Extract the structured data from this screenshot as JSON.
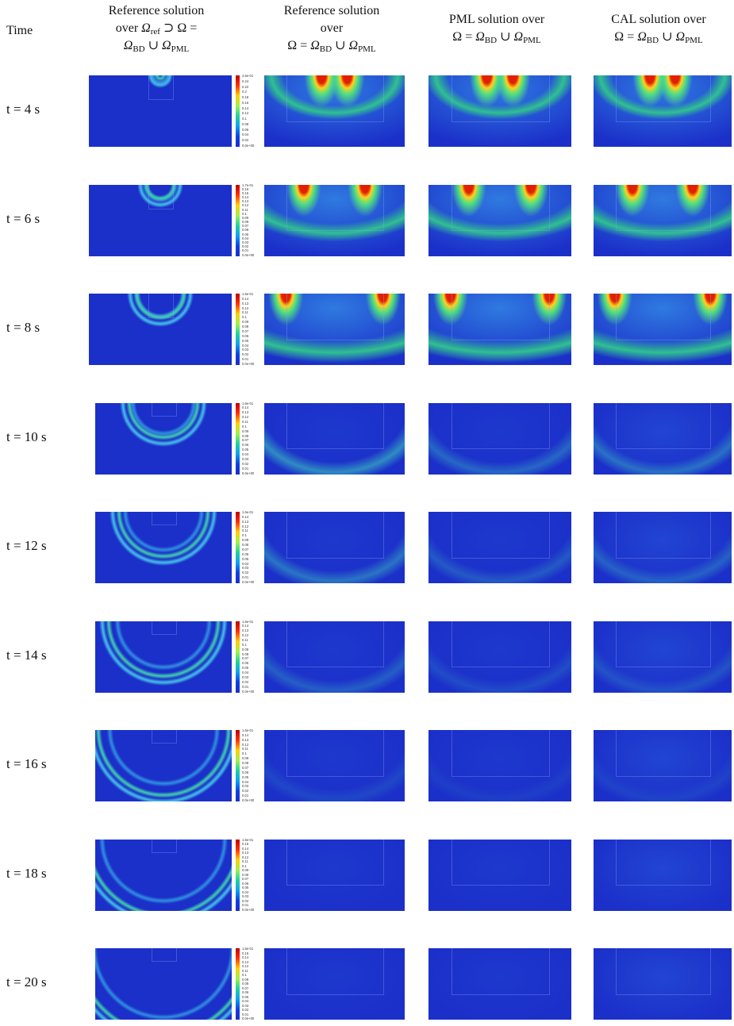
{
  "header": {
    "columns": [
      {
        "lines": [
          [
            "Time"
          ]
        ]
      },
      {
        "lines": [
          [
            "Reference solution"
          ],
          [
            "over ",
            {
              "base": "Ω",
              "sub": "ref"
            },
            " ⊃ Ω ="
          ],
          [
            {
              "base": "Ω",
              "sub": "BD"
            },
            " ∪ ",
            {
              "base": "Ω",
              "sub": "PML"
            }
          ]
        ]
      },
      {
        "lines": [
          [
            "Reference solution"
          ],
          [
            "over"
          ],
          [
            "Ω = ",
            {
              "base": "Ω",
              "sub": "BD"
            },
            " ∪ ",
            {
              "base": "Ω",
              "sub": "PML"
            }
          ]
        ]
      },
      {
        "lines": [
          [
            "PML solution over"
          ],
          [
            "Ω = ",
            {
              "base": "Ω",
              "sub": "BD"
            },
            " ∪ ",
            {
              "base": "Ω",
              "sub": "PML"
            }
          ]
        ]
      },
      {
        "lines": [
          [
            "CAL solution over"
          ],
          [
            "Ω = ",
            {
              "base": "Ω",
              "sub": "BD"
            },
            " ∪ ",
            {
              "base": "Ω",
              "sub": "PML"
            }
          ]
        ]
      }
    ]
  },
  "rows": [
    {
      "time": "t = 4 s",
      "colorbar": [
        "2.6e-01",
        "0.24",
        "0.22",
        "0.2",
        "0.18",
        "0.16",
        "0.14",
        "0.12",
        "0.1",
        "0.08",
        "0.06",
        "0.04",
        "0.02",
        "0.0e+00"
      ]
    },
    {
      "time": "t = 6 s",
      "colorbar": [
        "1.7e-01",
        "0.16",
        "0.15",
        "0.14",
        "0.13",
        "0.12",
        "0.11",
        "0.1",
        "0.09",
        "0.08",
        "0.07",
        "0.06",
        "0.05",
        "0.04",
        "0.03",
        "0.02",
        "0.01",
        "0.0e+00"
      ]
    },
    {
      "time": "t = 8 s",
      "colorbar": [
        "1.6e-01",
        "0.14",
        "0.13",
        "0.12",
        "0.11",
        "0.1",
        "0.09",
        "0.08",
        "0.07",
        "0.06",
        "0.05",
        "0.04",
        "0.03",
        "0.02",
        "0.01",
        "0.0e+00"
      ]
    },
    {
      "time": "t = 10 s",
      "colorbar": [
        "1.6e-01",
        "0.14",
        "0.13",
        "0.12",
        "0.11",
        "0.1",
        "0.09",
        "0.08",
        "0.07",
        "0.06",
        "0.05",
        "0.04",
        "0.03",
        "0.02",
        "0.01",
        "0.0e+00"
      ]
    },
    {
      "time": "t = 12 s",
      "colorbar": [
        "1.6e-01",
        "0.14",
        "0.13",
        "0.12",
        "0.11",
        "0.1",
        "0.09",
        "0.08",
        "0.07",
        "0.06",
        "0.05",
        "0.04",
        "0.03",
        "0.02",
        "0.01",
        "0.0e+00"
      ]
    },
    {
      "time": "t = 14 s",
      "colorbar": [
        "1.6e-01",
        "0.14",
        "0.13",
        "0.12",
        "0.11",
        "0.1",
        "0.09",
        "0.08",
        "0.07",
        "0.06",
        "0.05",
        "0.04",
        "0.03",
        "0.02",
        "0.01",
        "0.0e+00"
      ]
    },
    {
      "time": "t = 16 s",
      "colorbar": [
        "1.6e-01",
        "0.14",
        "0.13",
        "0.12",
        "0.11",
        "0.1",
        "0.09",
        "0.08",
        "0.07",
        "0.06",
        "0.05",
        "0.04",
        "0.03",
        "0.02",
        "0.01",
        "0.0e+00"
      ]
    },
    {
      "time": "t = 18 s",
      "colorbar": [
        "1.6e-01",
        "0.15",
        "0.14",
        "0.13",
        "0.12",
        "0.11",
        "0.1",
        "0.09",
        "0.08",
        "0.07",
        "0.06",
        "0.05",
        "0.04",
        "0.03",
        "0.02",
        "0.01",
        "0.0e+00"
      ]
    },
    {
      "time": "t = 20 s",
      "colorbar": [
        "1.6e-01",
        "0.15",
        "0.14",
        "0.13",
        "0.12",
        "0.11",
        "0.1",
        "0.09",
        "0.08",
        "0.07",
        "0.06",
        "0.05",
        "0.04",
        "0.03",
        "0.02",
        "0.01",
        "0.0e+00"
      ]
    }
  ]
}
